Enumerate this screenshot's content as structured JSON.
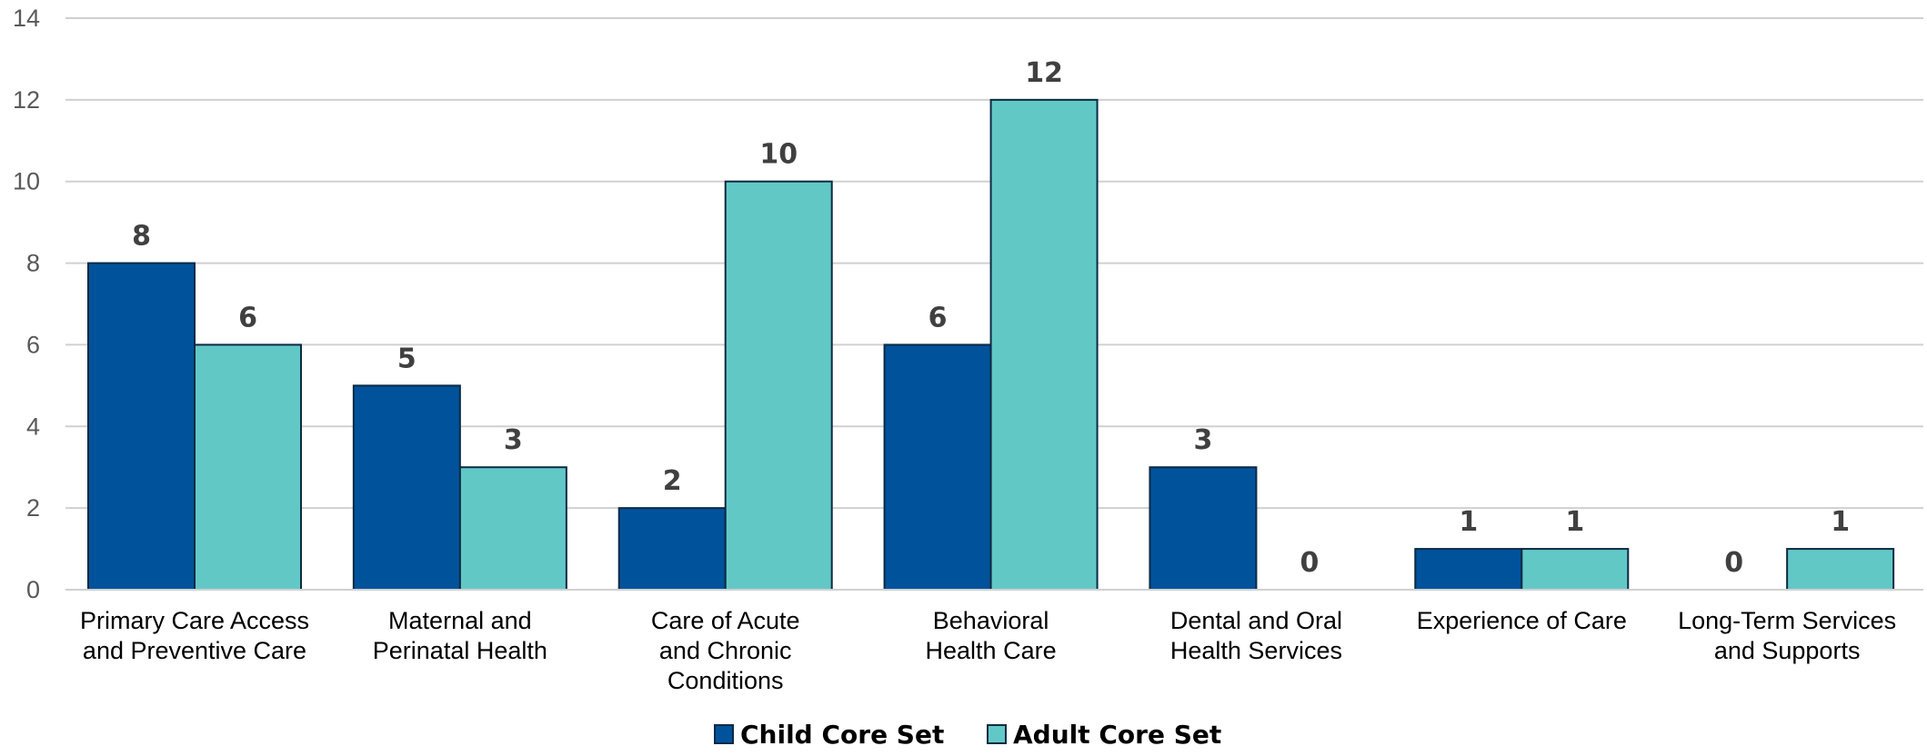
{
  "chart_data": {
    "type": "bar",
    "categories": [
      [
        "Primary Care Access",
        "and Preventive Care"
      ],
      [
        "Maternal and",
        "Perinatal Health"
      ],
      [
        "Care of Acute",
        "and Chronic",
        "Conditions"
      ],
      [
        "Behavioral",
        "Health Care"
      ],
      [
        "Dental and Oral",
        "Health Services"
      ],
      [
        "Experience of Care"
      ],
      [
        "Long-Term Services",
        "and Supports"
      ]
    ],
    "series": [
      {
        "name": "Child Core Set",
        "color": "#00529B",
        "values": [
          8,
          5,
          2,
          6,
          3,
          1,
          0
        ]
      },
      {
        "name": "Adult Core Set",
        "color": "#62C8C6",
        "values": [
          6,
          3,
          10,
          12,
          0,
          1,
          1
        ]
      }
    ],
    "yticks": [
      "0",
      "2",
      "4",
      "6",
      "8",
      "10",
      "12",
      "14"
    ],
    "ylim": [
      0,
      14
    ],
    "grid": true,
    "legend": "bottom-center",
    "data_labels": true
  }
}
